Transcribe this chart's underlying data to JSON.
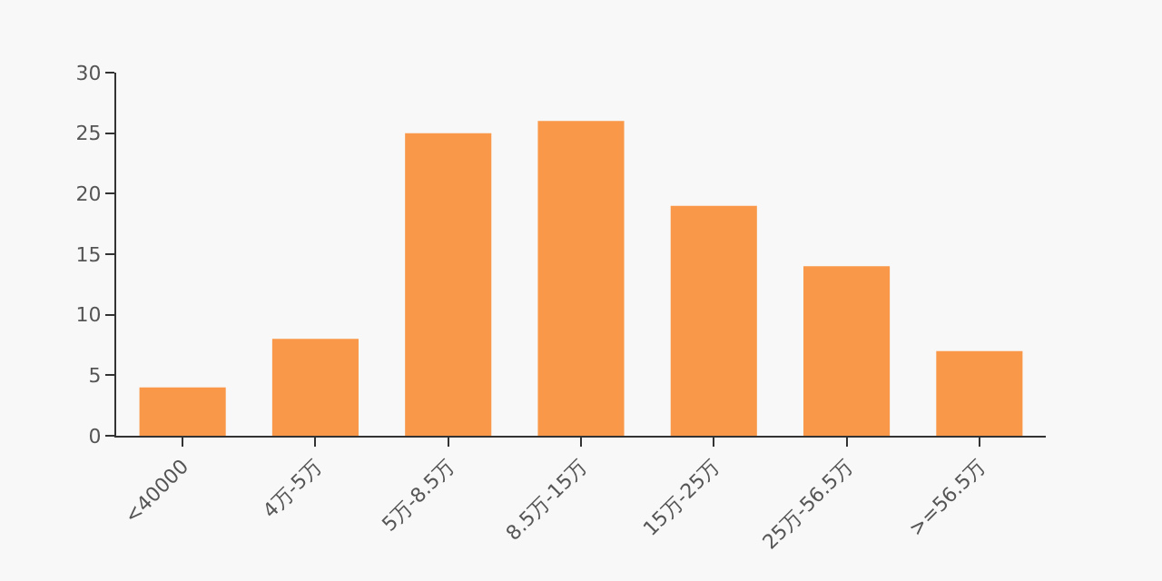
{
  "chart_data": {
    "type": "bar",
    "categories": [
      "<40000",
      "4万-5万",
      "5万-8.5万",
      "8.5万-15万",
      "15万-25万",
      "25万-56.5万",
      ">=56.5万"
    ],
    "values": [
      4,
      8,
      25,
      26,
      19,
      14,
      7
    ],
    "color": "#f89848",
    "ylim": [
      0,
      30
    ],
    "yticks": [
      0,
      5,
      10,
      15,
      20,
      25,
      30
    ],
    "grid": false
  }
}
